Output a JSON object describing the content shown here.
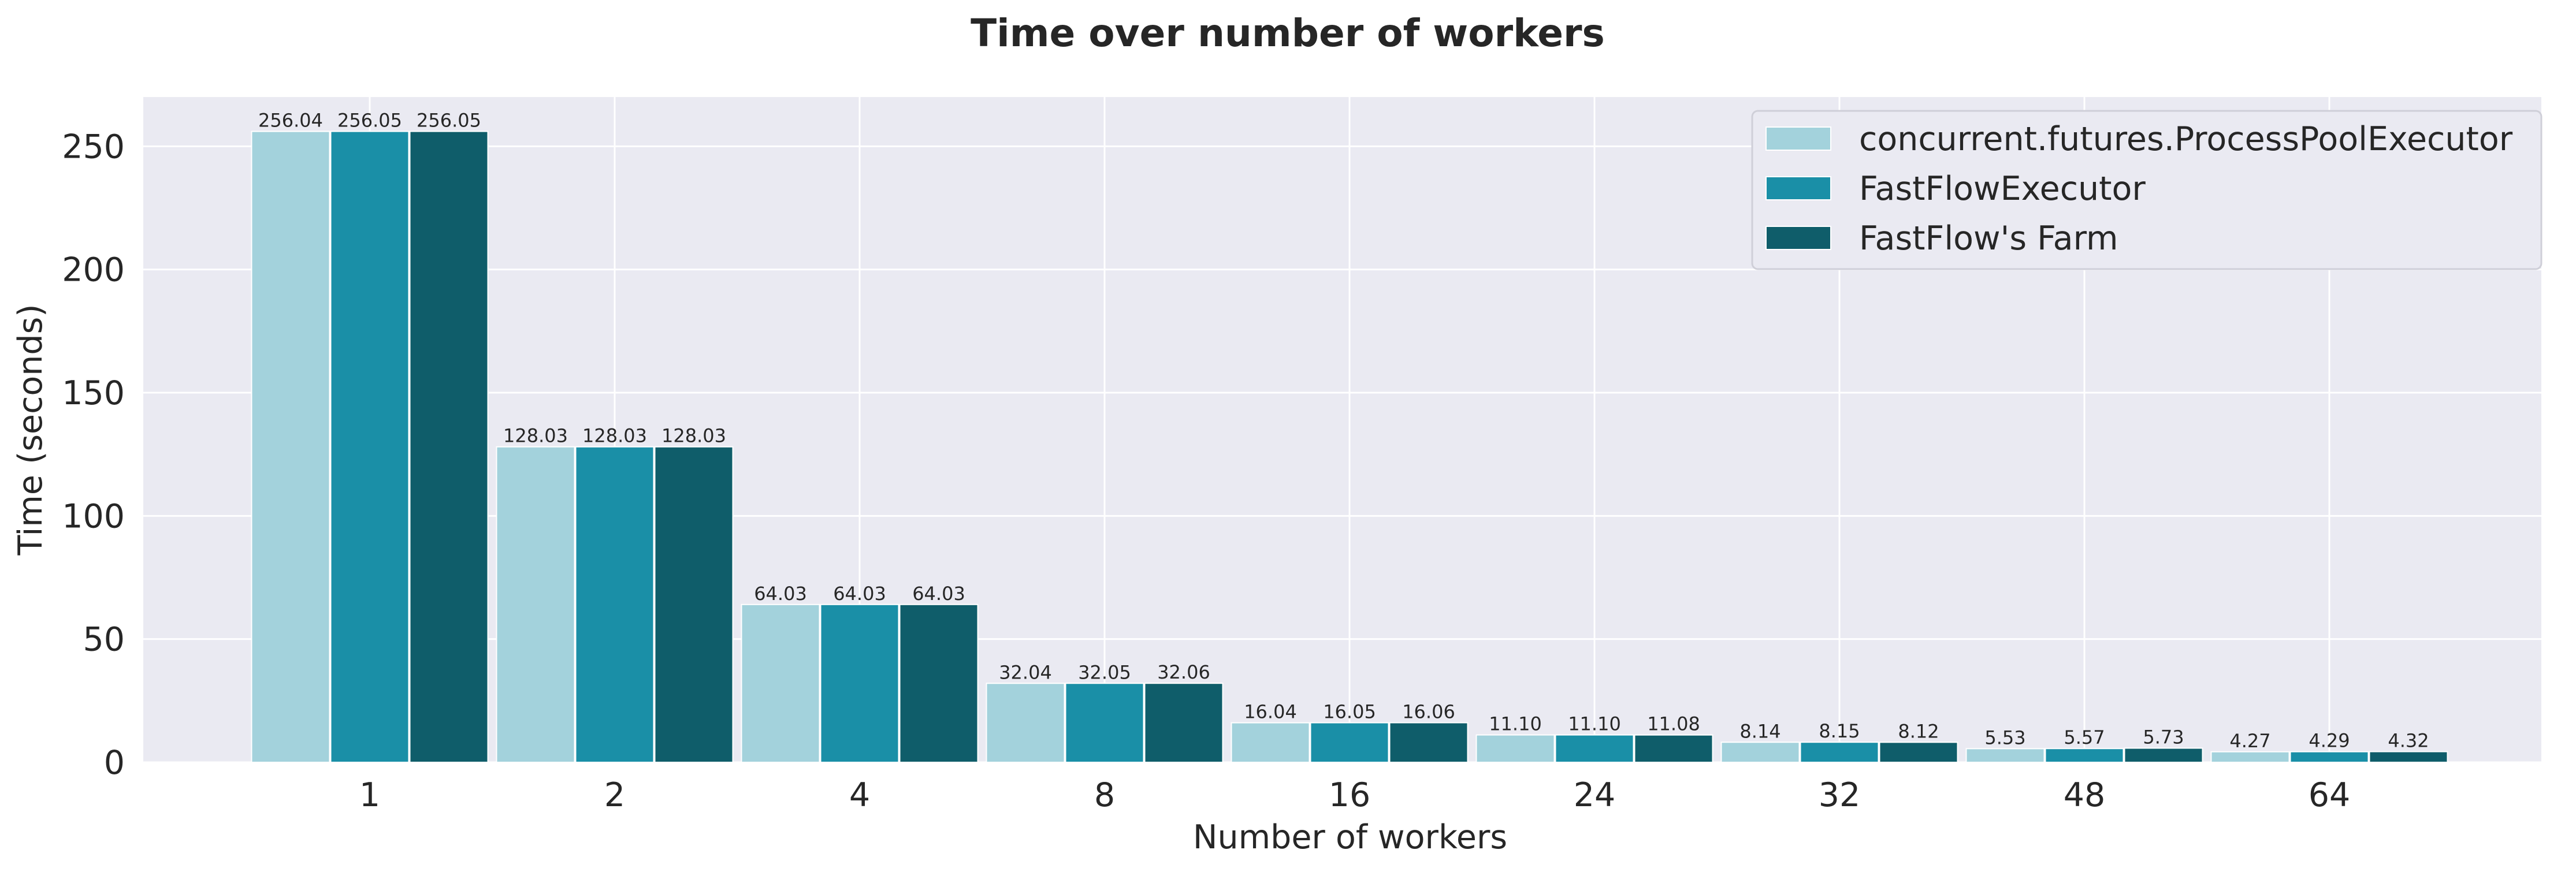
{
  "chart_data": {
    "type": "bar",
    "title": "Time over number of workers",
    "xlabel": "Number of workers",
    "ylabel": "Time (seconds)",
    "ylim": [
      0,
      270
    ],
    "yticks": [
      0,
      50,
      100,
      150,
      200,
      250
    ],
    "categories": [
      "1",
      "2",
      "4",
      "8",
      "16",
      "24",
      "32",
      "48",
      "64"
    ],
    "grid": true,
    "legend_position": "top-right",
    "background": "#eaeaf2",
    "series": [
      {
        "name": "concurrent.futures.ProcessPoolExecutor",
        "color": "#a3d2dc",
        "values": [
          256.04,
          128.03,
          64.03,
          32.04,
          16.04,
          11.1,
          8.14,
          5.53,
          4.27
        ],
        "labels": [
          "256.04",
          "128.03",
          "64.03",
          "32.04",
          "16.04",
          "11.10",
          "8.14",
          "5.53",
          "4.27"
        ]
      },
      {
        "name": "FastFlowExecutor",
        "color": "#1a8fa7",
        "values": [
          256.05,
          128.03,
          64.03,
          32.05,
          16.05,
          11.1,
          8.15,
          5.57,
          4.29
        ],
        "labels": [
          "256.05",
          "128.03",
          "64.03",
          "32.05",
          "16.05",
          "11.10",
          "8.15",
          "5.57",
          "4.29"
        ]
      },
      {
        "name": "FastFlow's Farm",
        "color": "#0f5d6a",
        "values": [
          256.05,
          128.03,
          64.03,
          32.06,
          16.06,
          11.08,
          8.12,
          5.73,
          4.32
        ],
        "labels": [
          "256.05",
          "128.03",
          "64.03",
          "32.06",
          "16.06",
          "11.08",
          "8.12",
          "5.73",
          "4.32"
        ]
      }
    ]
  }
}
